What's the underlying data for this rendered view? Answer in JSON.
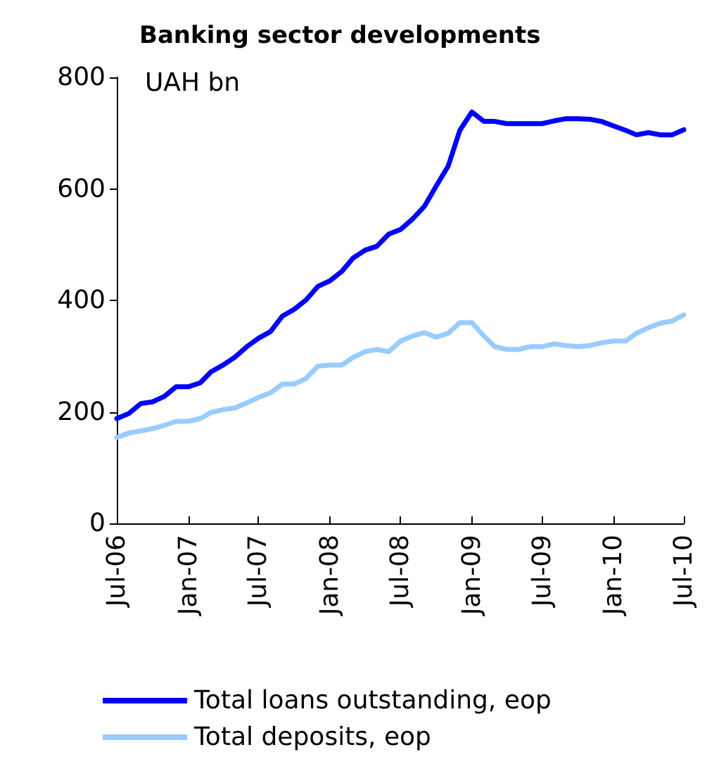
{
  "chart_data": {
    "type": "line",
    "title": "Banking sector developments",
    "ylabel": "UAH bn",
    "x": [
      "2006-07",
      "2006-08",
      "2006-09",
      "2006-10",
      "2006-11",
      "2006-12",
      "2007-01",
      "2007-02",
      "2007-03",
      "2007-04",
      "2007-05",
      "2007-06",
      "2007-07",
      "2007-08",
      "2007-09",
      "2007-10",
      "2007-11",
      "2007-12",
      "2008-01",
      "2008-02",
      "2008-03",
      "2008-04",
      "2008-05",
      "2008-06",
      "2008-07",
      "2008-08",
      "2008-09",
      "2008-10",
      "2008-11",
      "2008-12",
      "2009-01",
      "2009-02",
      "2009-03",
      "2009-04",
      "2009-05",
      "2009-06",
      "2009-07",
      "2009-08",
      "2009-09",
      "2009-10",
      "2009-11",
      "2009-12",
      "2010-01",
      "2010-02",
      "2010-03",
      "2010-04",
      "2010-05",
      "2010-06",
      "2010-07"
    ],
    "series": [
      {
        "name": "Total loans outstanding, eop",
        "color": "#0000ff",
        "values": [
          188,
          197,
          215,
          218,
          228,
          245,
          245,
          252,
          272,
          284,
          298,
          317,
          332,
          344,
          372,
          384,
          401,
          425,
          435,
          452,
          476,
          490,
          497,
          519,
          527,
          546,
          569,
          605,
          641,
          705,
          738,
          721,
          721,
          717,
          717,
          717,
          717,
          722,
          726,
          726,
          725,
          721,
          713,
          705,
          697,
          701,
          697,
          697,
          706
        ]
      },
      {
        "name": "Total deposits, eop",
        "color": "#99ccff",
        "values": [
          154,
          162,
          166,
          170,
          176,
          183,
          183,
          188,
          199,
          204,
          207,
          216,
          226,
          234,
          250,
          250,
          260,
          282,
          284,
          284,
          298,
          308,
          312,
          308,
          327,
          336,
          342,
          334,
          341,
          360,
          360,
          336,
          317,
          312,
          312,
          317,
          317,
          322,
          319,
          317,
          319,
          324,
          327,
          327,
          341,
          351,
          359,
          363,
          374
        ]
      }
    ],
    "xlim": [
      "2006-07",
      "2010-07"
    ],
    "xticks": [
      {
        "value": "2006-07",
        "label": "Jul-06"
      },
      {
        "value": "2007-01",
        "label": "Jan-07"
      },
      {
        "value": "2007-07",
        "label": "Jul-07"
      },
      {
        "value": "2008-01",
        "label": "Jan-08"
      },
      {
        "value": "2008-07",
        "label": "Jul-08"
      },
      {
        "value": "2009-01",
        "label": "Jan-09"
      },
      {
        "value": "2009-07",
        "label": "Jul-09"
      },
      {
        "value": "2010-01",
        "label": "Jan-10"
      },
      {
        "value": "2010-07",
        "label": "Jul-10"
      }
    ],
    "ylim": [
      0,
      800
    ],
    "yticks": [
      0,
      200,
      400,
      600,
      800
    ],
    "grid": false,
    "legend": "bottom",
    "marker": "none",
    "line_style": "solid"
  }
}
